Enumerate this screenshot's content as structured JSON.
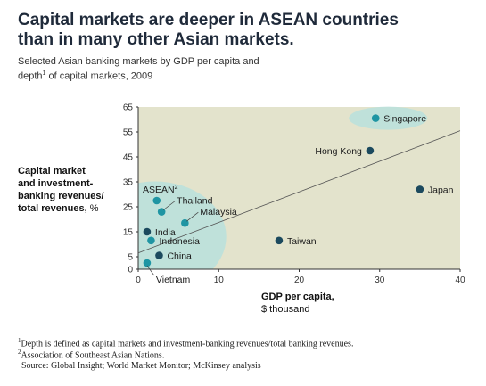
{
  "header": {
    "title_line1": "Capital markets are deeper in ASEAN countries",
    "title_line2": "than in many other Asian markets.",
    "subtitle_line1": "Selected Asian banking markets by GDP per capita and",
    "subtitle_line2_a": "depth",
    "subtitle_line2_sup": "1",
    "subtitle_line2_b": " of capital markets, 2009"
  },
  "axes": {
    "ylabel_bold_1": "Capital market",
    "ylabel_bold_2": "and investment-",
    "ylabel_bold_3": "banking revenues/",
    "ylabel_bold_4": "total revenues,",
    "ylabel_unit": " %",
    "xlabel_bold": "GDP per capita,",
    "xlabel_unit": "$ thousand"
  },
  "footnotes": {
    "note1_sup": "1",
    "note1": "Depth is defined as capital markets and investment-banking revenues/total banking revenues.",
    "note2_sup": "2",
    "note2": "Association of Southeast Asian Nations.",
    "source": "Source: Global Insight; World Market Monitor; McKinsey analysis"
  },
  "colors": {
    "plot_bg": "#e3e3cc",
    "point": "#1f95a3",
    "point_dark": "#1c4a5e",
    "bubble": "#b8e0dc",
    "trend": "#555555"
  },
  "chart_data": {
    "type": "scatter",
    "xlim": [
      0,
      40
    ],
    "ylim": [
      0,
      65
    ],
    "xticks": [
      0,
      10,
      20,
      30,
      40
    ],
    "yticks": [
      0,
      5,
      15,
      25,
      35,
      45,
      55,
      65
    ],
    "grid": false,
    "points": [
      {
        "label": "Singapore",
        "x": 29.5,
        "y": 60.5,
        "color": "#1f95a3",
        "label_pos": "right"
      },
      {
        "label": "Hong Kong",
        "x": 28.8,
        "y": 47.5,
        "color": "#1c4a5e",
        "label_pos": "left"
      },
      {
        "label": "Japan",
        "x": 35,
        "y": 32,
        "color": "#1c4a5e",
        "label_pos": "right"
      },
      {
        "label": "Thailand",
        "x": 2.9,
        "y": 23,
        "color": "#1f95a3",
        "label_pos": "upright"
      },
      {
        "label": "ASEAN",
        "label_sup": "2",
        "x": 2.3,
        "y": 27.5,
        "color": "#1f95a3",
        "label_pos": "upleft"
      },
      {
        "label": "Malaysia",
        "x": 5.8,
        "y": 18.5,
        "color": "#1f95a3",
        "label_pos": "upright"
      },
      {
        "label": "India",
        "x": 1.1,
        "y": 15,
        "color": "#1c4a5e",
        "label_pos": "right"
      },
      {
        "label": "Indonesia",
        "x": 1.6,
        "y": 11.5,
        "color": "#1f95a3",
        "label_pos": "right"
      },
      {
        "label": "Taiwan",
        "x": 17.5,
        "y": 11.5,
        "color": "#1c4a5e",
        "label_pos": "right"
      },
      {
        "label": "China",
        "x": 2.6,
        "y": 5.5,
        "color": "#1c4a5e",
        "label_pos": "right"
      },
      {
        "label": "Vietnam",
        "x": 1.1,
        "y": 2.5,
        "color": "#1f95a3",
        "label_pos": "below"
      }
    ],
    "trendline": {
      "x": [
        0,
        40
      ],
      "y": [
        6.5,
        55.5
      ]
    }
  }
}
